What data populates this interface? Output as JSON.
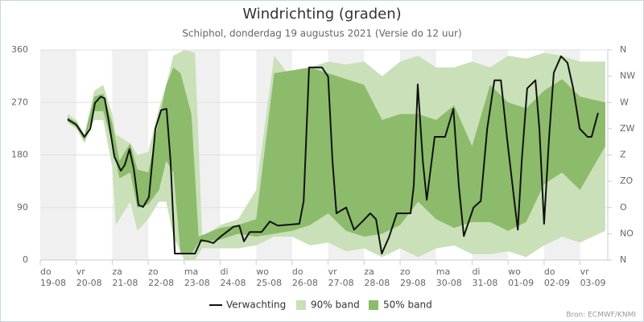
{
  "chart_data": {
    "type": "line",
    "title": "Windrichting (graden)",
    "subtitle": "Schiphol, donderdag 19 augustus 2021 (Versie do 12 uur)",
    "source": "Bron: ECMWF/KNMI",
    "xlim": [
      0,
      15.77
    ],
    "ylim": [
      0,
      360
    ],
    "yticks": [
      0,
      90,
      180,
      270,
      360
    ],
    "y2lim": [
      0,
      360
    ],
    "y2ticks": [
      {
        "value": 0,
        "label": "N"
      },
      {
        "value": 45,
        "label": "NO"
      },
      {
        "value": 90,
        "label": "O"
      },
      {
        "value": 135,
        "label": "ZO"
      },
      {
        "value": 180,
        "label": "Z"
      },
      {
        "value": 225,
        "label": "ZW"
      },
      {
        "value": 270,
        "label": "W"
      },
      {
        "value": 315,
        "label": "NW"
      },
      {
        "value": 360,
        "label": "N"
      }
    ],
    "xticks": [
      {
        "value": 0,
        "label": "do",
        "date": "19-08"
      },
      {
        "value": 1,
        "label": "vr",
        "date": "20-08"
      },
      {
        "value": 2,
        "label": "za",
        "date": "21-08"
      },
      {
        "value": 3,
        "label": "zo",
        "date": "22-08"
      },
      {
        "value": 4,
        "label": "ma",
        "date": "23-08"
      },
      {
        "value": 5,
        "label": "di",
        "date": "24-08"
      },
      {
        "value": 6,
        "label": "wo",
        "date": "25-08"
      },
      {
        "value": 7,
        "label": "do",
        "date": "26-08"
      },
      {
        "value": 8,
        "label": "vr",
        "date": "27-08"
      },
      {
        "value": 9,
        "label": "za",
        "date": "28-08"
      },
      {
        "value": 10,
        "label": "zo",
        "date": "29-08"
      },
      {
        "value": 11,
        "label": "ma",
        "date": "30-08"
      },
      {
        "value": 12,
        "label": "di",
        "date": "31-08"
      },
      {
        "value": 13,
        "label": "wo",
        "date": "01-09"
      },
      {
        "value": 14,
        "label": "do",
        "date": "02-09"
      },
      {
        "value": 15,
        "label": "vr",
        "date": "03-09"
      }
    ],
    "grid": true,
    "legend": "bottom",
    "series": [
      {
        "name": "Verwachting",
        "color": "#111111",
        "x": [
          0.76,
          1.0,
          1.23,
          1.39,
          1.52,
          1.68,
          1.79,
          1.9,
          2.06,
          2.24,
          2.35,
          2.48,
          2.6,
          2.73,
          2.86,
          3.02,
          3.2,
          3.36,
          3.51,
          3.62,
          3.74,
          4.03,
          4.3,
          4.47,
          4.65,
          4.81,
          5.03,
          5.37,
          5.53,
          5.66,
          5.82,
          6.15,
          6.38,
          6.6,
          7.2,
          7.32,
          7.47,
          7.83,
          8.0,
          8.12,
          8.23,
          8.5,
          8.72,
          8.95,
          9.17,
          9.33,
          9.49,
          9.69,
          9.91,
          10.29,
          10.38,
          10.49,
          10.63,
          10.74,
          10.96,
          11.25,
          11.48,
          11.63,
          11.77,
          12.04,
          12.24,
          12.42,
          12.62,
          12.8,
          12.98,
          13.2,
          13.27,
          13.38,
          13.53,
          13.76,
          13.87,
          14.0,
          14.14,
          14.27,
          14.47,
          14.65,
          14.81,
          14.99,
          15.21,
          15.32,
          15.5
        ],
        "values": [
          241,
          232,
          211,
          225,
          269,
          280,
          277,
          239,
          177,
          153,
          163,
          190,
          156,
          94,
          91,
          108,
          225,
          257,
          259,
          170,
          11,
          11,
          11,
          34,
          32,
          29,
          41,
          57,
          59,
          32,
          48,
          48,
          66,
          59,
          62,
          101,
          330,
          330,
          314,
          170,
          80,
          90,
          52,
          66,
          80,
          70,
          11,
          39,
          80,
          80,
          128,
          301,
          170,
          103,
          211,
          211,
          259,
          128,
          41,
          90,
          101,
          225,
          308,
          308,
          204,
          87,
          52,
          170,
          294,
          308,
          225,
          62,
          211,
          321,
          349,
          338,
          294,
          225,
          211,
          211,
          252
        ]
      }
    ],
    "bands": [
      {
        "name": "90% band",
        "color": "#c9e0b8",
        "x": [
          0.76,
          1.0,
          1.23,
          1.5,
          1.75,
          2.0,
          2.1,
          2.5,
          2.7,
          3.0,
          3.3,
          3.5,
          3.7,
          4.0,
          4.3,
          4.5,
          5.0,
          5.5,
          6.0,
          6.5,
          7.0,
          7.5,
          8.0,
          8.5,
          9.0,
          9.5,
          10.0,
          10.5,
          11.0,
          11.5,
          12.0,
          12.5,
          13.0,
          13.5,
          14.0,
          14.5,
          15.0,
          15.7
        ],
        "low": [
          235,
          225,
          200,
          240,
          240,
          160,
          60,
          100,
          50,
          70,
          100,
          100,
          40,
          0,
          0,
          20,
          20,
          20,
          25,
          40,
          40,
          25,
          30,
          15,
          20,
          5,
          20,
          5,
          20,
          25,
          10,
          10,
          15,
          5,
          25,
          40,
          30,
          50
        ],
        "high": [
          250,
          240,
          215,
          290,
          300,
          250,
          215,
          200,
          180,
          185,
          260,
          300,
          350,
          360,
          355,
          40,
          60,
          70,
          120,
          350,
          310,
          330,
          340,
          335,
          340,
          315,
          340,
          350,
          330,
          330,
          340,
          330,
          350,
          345,
          355,
          350,
          340,
          340
        ]
      },
      {
        "name": "50% band",
        "color": "#8cbb6b",
        "x": [
          0.76,
          1.0,
          1.23,
          1.5,
          1.75,
          2.0,
          2.2,
          2.5,
          2.7,
          3.0,
          3.3,
          3.5,
          3.7,
          3.9,
          4.2,
          4.4,
          5.0,
          5.5,
          6.0,
          6.5,
          7.0,
          7.5,
          8.0,
          8.5,
          9.0,
          9.5,
          10.0,
          10.5,
          11.0,
          11.5,
          12.0,
          12.5,
          13.0,
          13.5,
          14.0,
          14.5,
          15.0,
          15.7
        ],
        "low": [
          238,
          228,
          205,
          255,
          255,
          200,
          140,
          150,
          90,
          95,
          120,
          170,
          150,
          10,
          10,
          30,
          35,
          45,
          40,
          45,
          50,
          60,
          80,
          50,
          40,
          45,
          60,
          100,
          70,
          55,
          65,
          65,
          50,
          65,
          130,
          150,
          120,
          195
        ],
        "high": [
          245,
          236,
          213,
          280,
          285,
          235,
          170,
          200,
          155,
          150,
          240,
          300,
          330,
          320,
          250,
          40,
          55,
          60,
          70,
          320,
          325,
          330,
          320,
          310,
          300,
          240,
          250,
          250,
          240,
          265,
          195,
          300,
          270,
          260,
          290,
          310,
          280,
          270
        ]
      }
    ]
  }
}
